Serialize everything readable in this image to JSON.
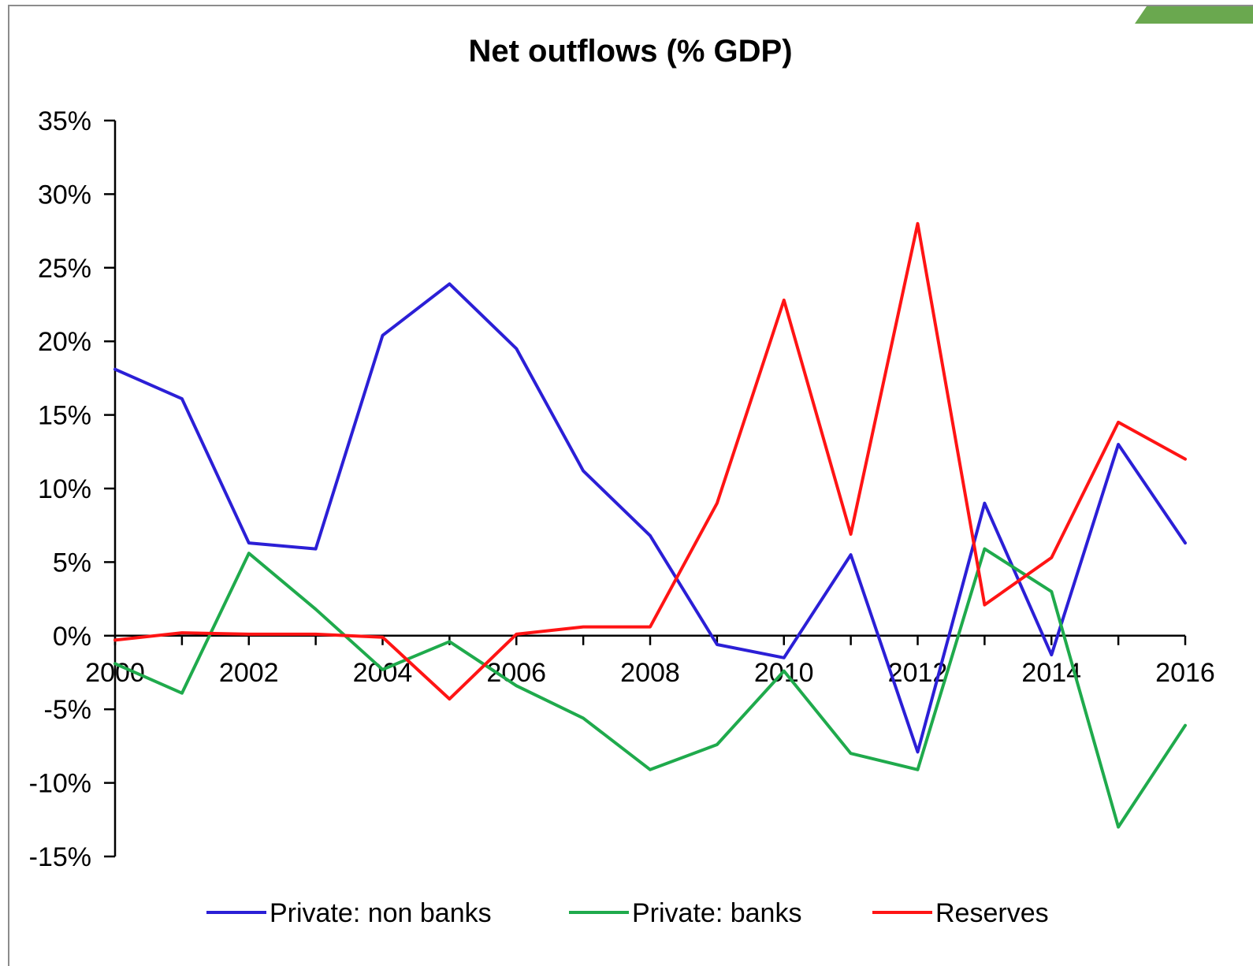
{
  "chart_data": {
    "type": "line",
    "title": "Net outflows (% GDP)",
    "xlabel": "",
    "ylabel": "",
    "x": [
      2000,
      2001,
      2002,
      2003,
      2004,
      2005,
      2006,
      2007,
      2008,
      2009,
      2010,
      2011,
      2012,
      2013,
      2014,
      2015,
      2016
    ],
    "x_tick_labels": [
      "2000",
      "2002",
      "2004",
      "2006",
      "2008",
      "2010",
      "2012",
      "2014",
      "2016"
    ],
    "y_tick_labels": [
      "35%",
      "30%",
      "25%",
      "20%",
      "15%",
      "10%",
      "5%",
      "0%",
      "-5%",
      "-10%",
      "-15%"
    ],
    "ylim": [
      -15,
      35
    ],
    "xlim": [
      2000,
      2016
    ],
    "grid": false,
    "legend_position": "bottom",
    "series": [
      {
        "name": "Private: non banks",
        "color": "#2b1fd6",
        "values": [
          18.1,
          16.1,
          6.3,
          5.9,
          20.4,
          23.9,
          19.5,
          11.2,
          6.8,
          -0.6,
          -1.5,
          5.5,
          -7.9,
          9.0,
          -1.3,
          13.0,
          6.3
        ]
      },
      {
        "name": "Private: banks",
        "color": "#1faa4c",
        "values": [
          -1.9,
          -3.9,
          5.6,
          1.8,
          -2.3,
          -0.4,
          -3.4,
          -5.6,
          -9.1,
          -7.4,
          -2.4,
          -8.0,
          -9.1,
          5.9,
          3.0,
          -13.0,
          -6.1
        ]
      },
      {
        "name": "Reserves",
        "color": "#ff1414",
        "values": [
          -0.3,
          0.2,
          0.1,
          0.1,
          -0.1,
          -4.3,
          0.1,
          0.6,
          0.6,
          9.0,
          22.8,
          6.9,
          28.0,
          2.1,
          5.3,
          14.5,
          12.0
        ]
      }
    ]
  }
}
